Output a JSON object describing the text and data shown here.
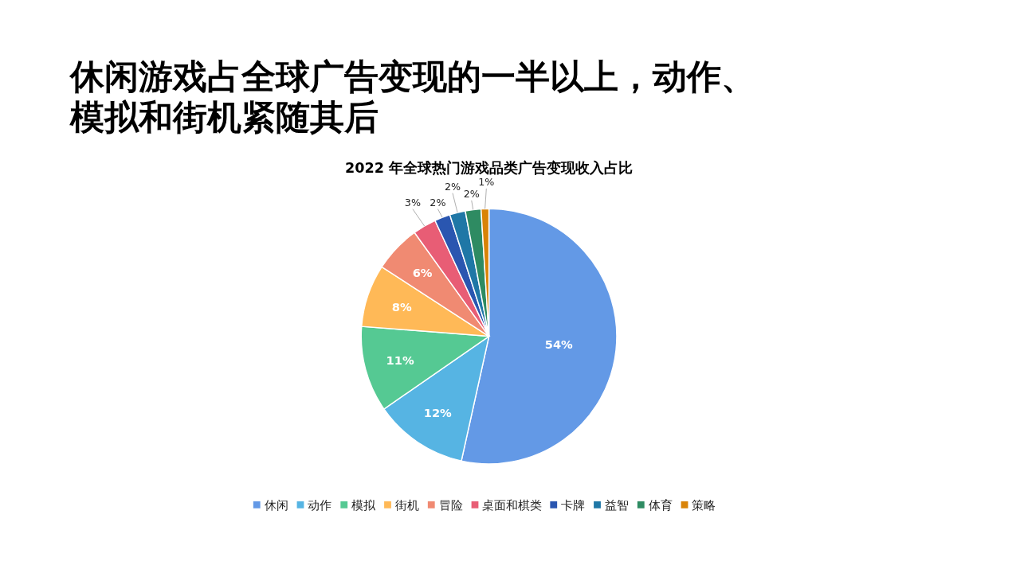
{
  "chart_data": {
    "type": "pie",
    "title": "休闲游戏占全球广告变现的一半以上，动作、模拟和街机紧随其后",
    "subtitle": "2022 年全球热门游戏品类广告变现收入占比",
    "categories": [
      "休闲",
      "动作",
      "模拟",
      "街机",
      "冒险",
      "桌面和棋类",
      "卡牌",
      "益智",
      "体育",
      "策略"
    ],
    "values": [
      54,
      12,
      11,
      8,
      6,
      3,
      2,
      2,
      2,
      1
    ],
    "colors": [
      "#6399e6",
      "#56b4e3",
      "#55c993",
      "#ffb957",
      "#f08a72",
      "#e85d75",
      "#2a56b0",
      "#1f77a6",
      "#2e8b62",
      "#d98307"
    ],
    "value_labels": [
      "54%",
      "12%",
      "11%",
      "8%",
      "6%",
      "3%",
      "2%",
      "2%",
      "2%",
      "1%"
    ],
    "legend": "bottom"
  }
}
